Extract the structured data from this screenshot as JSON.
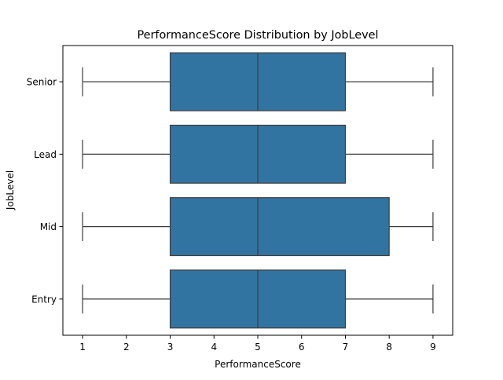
{
  "chart_data": {
    "type": "box",
    "orientation": "horizontal",
    "title": "PerformanceScore Distribution by JobLevel",
    "xlabel": "PerformanceScore",
    "ylabel": "JobLevel",
    "xlim": [
      0.55,
      9.45
    ],
    "xticks": [
      1,
      2,
      3,
      4,
      5,
      6,
      7,
      8,
      9
    ],
    "grid": false,
    "legend": false,
    "colors": {
      "box_fill": "#3274a1",
      "line": "#3d3d3d",
      "axis": "#000000"
    },
    "categories": [
      "Senior",
      "Lead",
      "Mid",
      "Entry"
    ],
    "boxes": [
      {
        "category": "Senior",
        "min": 1,
        "q1": 3,
        "median": 5,
        "q3": 7,
        "max": 9
      },
      {
        "category": "Lead",
        "min": 1,
        "q1": 3,
        "median": 5,
        "q3": 7,
        "max": 9
      },
      {
        "category": "Mid",
        "min": 1,
        "q1": 3,
        "median": 5,
        "q3": 8,
        "max": 9
      },
      {
        "category": "Entry",
        "min": 1,
        "q1": 3,
        "median": 5,
        "q3": 7,
        "max": 9
      }
    ]
  }
}
